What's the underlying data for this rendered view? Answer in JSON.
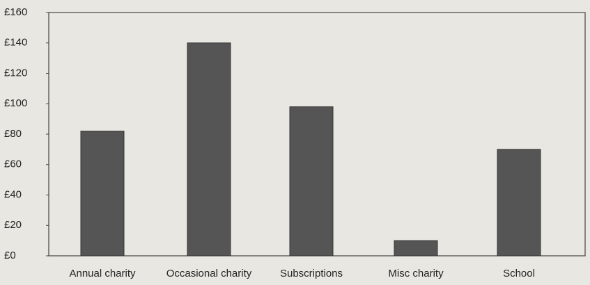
{
  "chart_data": {
    "type": "bar",
    "categories": [
      "Annual charity",
      "Occasional charity",
      "Subscriptions",
      "Misc charity",
      "School"
    ],
    "values": [
      82,
      140,
      98,
      10,
      70
    ],
    "color": "#555555",
    "ylim": [
      0,
      160
    ],
    "yticks": [
      {
        "value": 0,
        "label": "£0"
      },
      {
        "value": 20,
        "label": "£20"
      },
      {
        "value": 40,
        "label": "£40"
      },
      {
        "value": 60,
        "label": "£60"
      },
      {
        "value": 80,
        "label": "£80"
      },
      {
        "value": 100,
        "label": "£100"
      },
      {
        "value": 120,
        "label": "£120"
      },
      {
        "value": 140,
        "label": "£140"
      },
      {
        "value": 160,
        "label": "£160"
      }
    ],
    "grid": false
  }
}
